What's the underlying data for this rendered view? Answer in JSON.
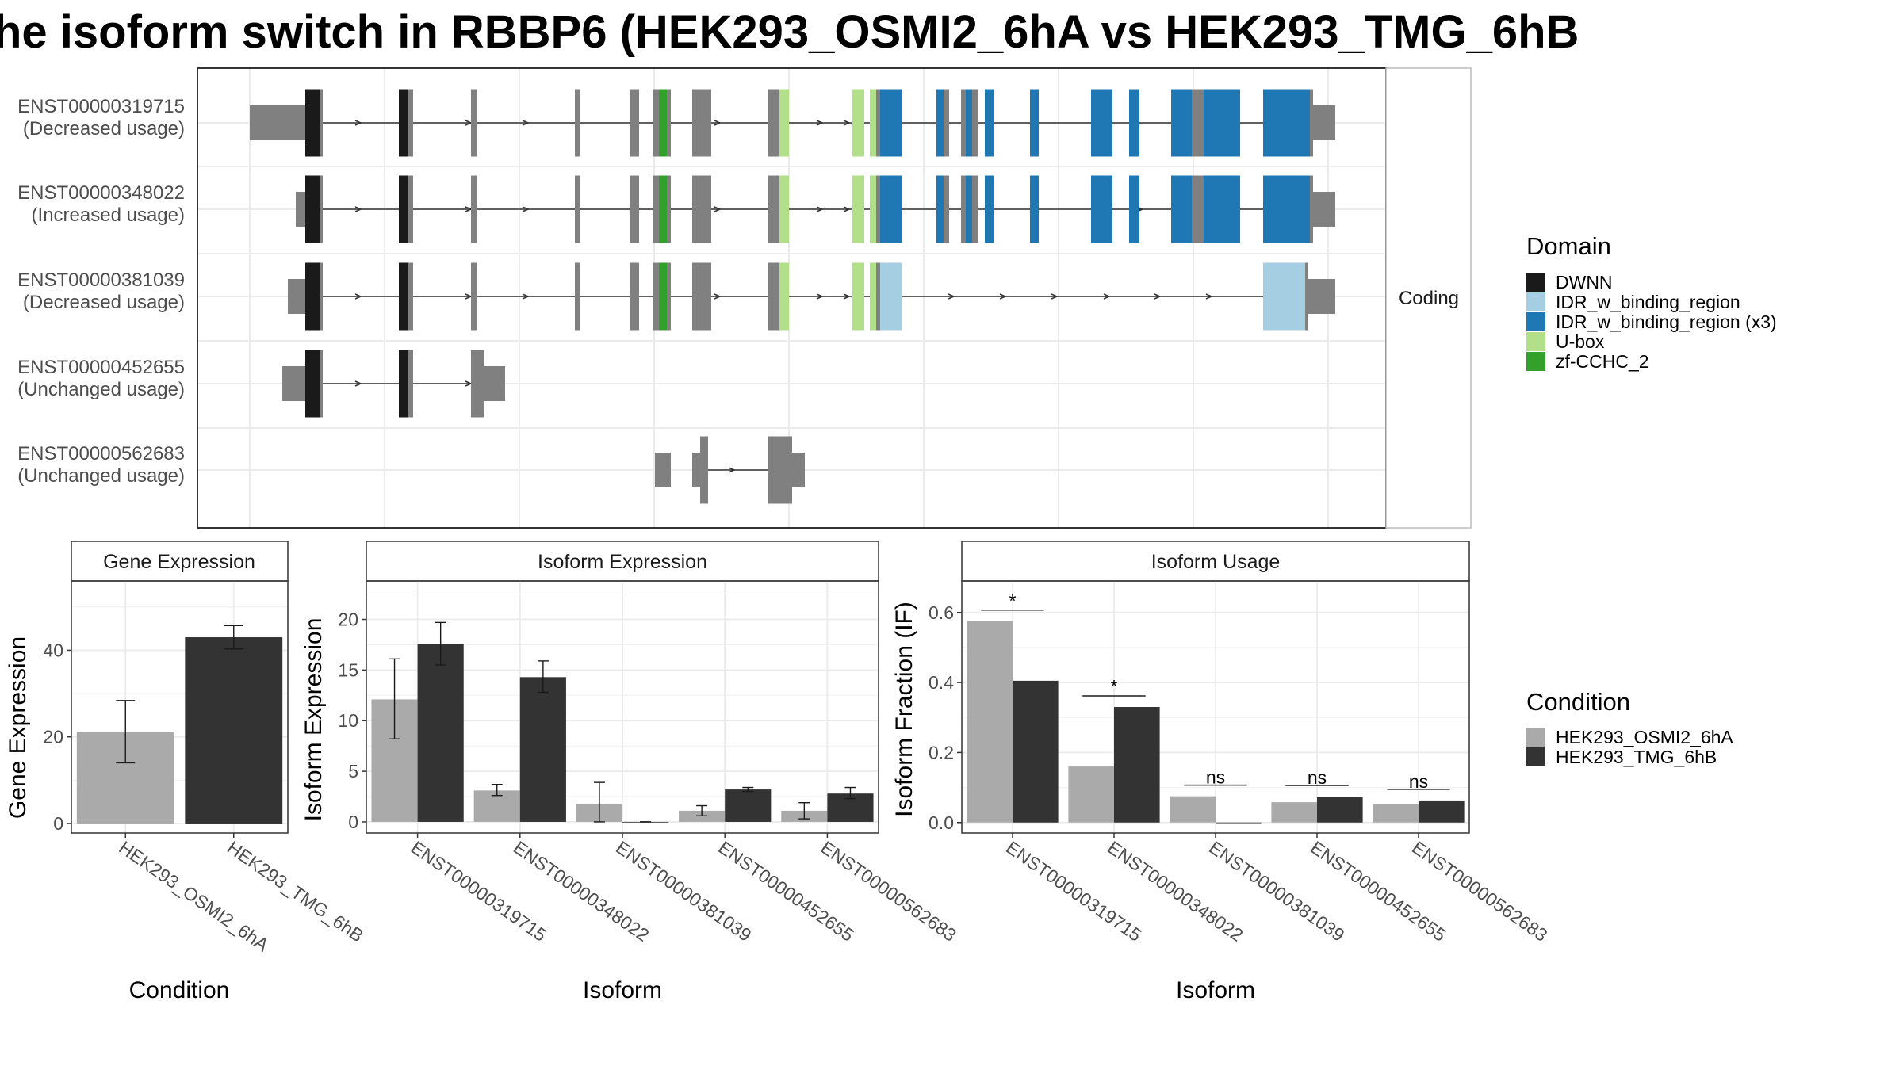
{
  "title": "he isoform switch in RBBP6 (HEK293_OSMI2_6hA vs HEK293_TMG_6hB",
  "colors": {
    "domains": {
      "DWNN": "#1a1a1a",
      "IDR_w_binding_region": "#a6cee3",
      "IDR_w_binding_region (x3)": "#1f78b4",
      "U-box": "#b2df8a",
      "zf-CCHC_2": "#33a02c"
    },
    "exon": "#808080",
    "conditions": {
      "HEK293_OSMI2_6hA": "#aaaaaa",
      "HEK293_TMG_6hB": "#333333"
    }
  },
  "transcript_plot": {
    "facet_label": "Coding",
    "transcripts": [
      {
        "id": "ENST00000319715",
        "usage": "(Decreased usage)"
      },
      {
        "id": "ENST00000348022",
        "usage": "(Increased usage)"
      },
      {
        "id": "ENST00000381039",
        "usage": "(Decreased usage)"
      },
      {
        "id": "ENST00000452655",
        "usage": "(Unchanged usage)"
      },
      {
        "id": "ENST00000562683",
        "usage": "(Unchanged usage)"
      }
    ],
    "legend": {
      "title": "Domain",
      "items": [
        "DWNN",
        "IDR_w_binding_region",
        "IDR_w_binding_region (x3)",
        "U-box",
        "zf-CCHC_2"
      ]
    }
  },
  "chart_data": [
    {
      "type": "bar",
      "title": "Gene Expression",
      "xlabel": "Condition",
      "ylabel": "Gene Expression",
      "categories": [
        "HEK293_OSMI2_6hA",
        "HEK293_TMG_6hB"
      ],
      "values": [
        21.2,
        43.0
      ],
      "error_low": [
        14.0,
        40.3
      ],
      "error_high": [
        28.4,
        45.7
      ],
      "ylim": [
        -2.2,
        56
      ],
      "yticks": [
        0,
        20,
        40
      ]
    },
    {
      "type": "bar",
      "title": "Isoform Expression",
      "xlabel": "Isoform",
      "ylabel": "Isoform Expression",
      "categories": [
        "ENST00000319715",
        "ENST00000348022",
        "ENST00000381039",
        "ENST00000452655",
        "ENST00000562683"
      ],
      "series": [
        {
          "name": "HEK293_OSMI2_6hA",
          "values": [
            12.1,
            3.1,
            1.8,
            1.1,
            1.1
          ],
          "error_low": [
            8.2,
            2.6,
            0.0,
            0.6,
            0.3
          ],
          "error_high": [
            16.1,
            3.7,
            3.9,
            1.6,
            1.9
          ]
        },
        {
          "name": "HEK293_TMG_6hB",
          "values": [
            17.6,
            14.3,
            0.0,
            3.2,
            2.8
          ],
          "error_low": [
            15.5,
            12.8,
            0.0,
            3.0,
            2.3
          ],
          "error_high": [
            19.7,
            15.9,
            0.0,
            3.4,
            3.4
          ]
        }
      ],
      "ylim": [
        -1.1,
        23.8
      ],
      "yticks": [
        0,
        5,
        10,
        15,
        20
      ]
    },
    {
      "type": "bar",
      "title": "Isoform Usage",
      "xlabel": "Isoform",
      "ylabel": "Isoform Fraction (IF)",
      "categories": [
        "ENST00000319715",
        "ENST00000348022",
        "ENST00000381039",
        "ENST00000452655",
        "ENST00000562683"
      ],
      "series": [
        {
          "name": "HEK293_OSMI2_6hA",
          "values": [
            0.575,
            0.16,
            0.075,
            0.058,
            0.053
          ]
        },
        {
          "name": "HEK293_TMG_6hB",
          "values": [
            0.405,
            0.33,
            0.0,
            0.074,
            0.063
          ]
        }
      ],
      "significance": [
        "*",
        "*",
        "ns",
        "ns",
        "ns"
      ],
      "ylim": [
        -0.03,
        0.69
      ],
      "yticks": [
        "0.0",
        "0.2",
        "0.4",
        "0.6"
      ]
    }
  ],
  "condition_legend": {
    "title": "Condition",
    "items": [
      "HEK293_OSMI2_6hA",
      "HEK293_TMG_6hB"
    ]
  }
}
